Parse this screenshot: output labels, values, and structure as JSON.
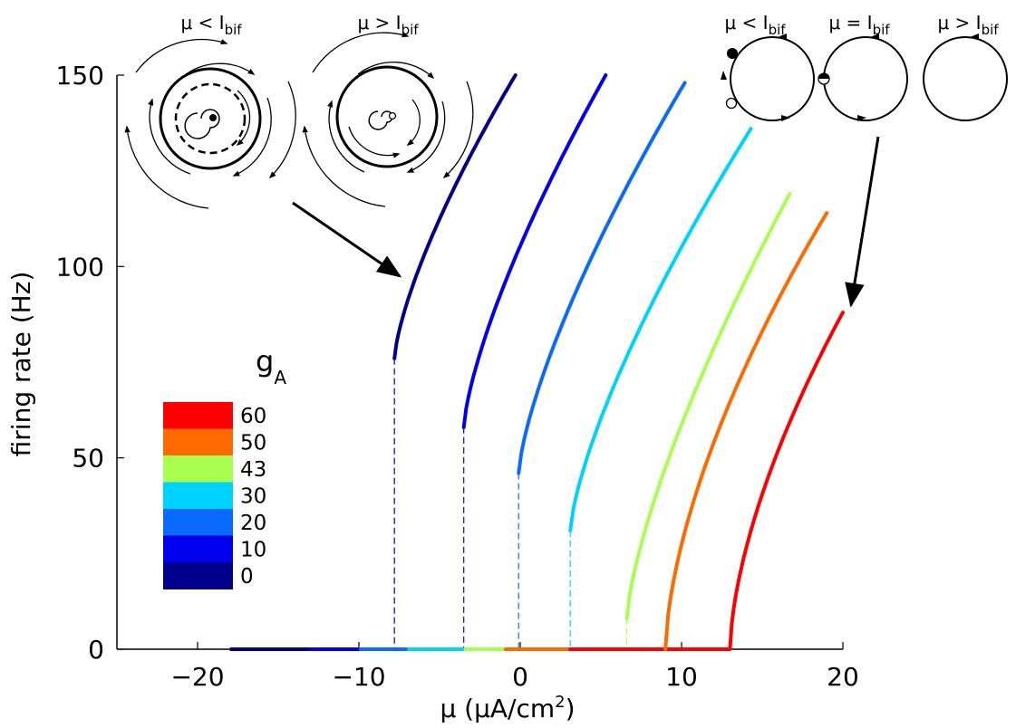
{
  "chart_data": {
    "type": "line",
    "title": "",
    "xlabel": "μ (μA/cm",
    "xlabel_sup": "2",
    "xlabel_end": ")",
    "ylabel": "firing rate (Hz)",
    "xlim": [
      -25,
      20
    ],
    "ylim": [
      0,
      150
    ],
    "xticks": [
      -20,
      -10,
      0,
      10,
      20
    ],
    "yticks": [
      0,
      50,
      100,
      150
    ],
    "xtick_labels": [
      "−20",
      "−10",
      "0",
      "10",
      "20"
    ],
    "ytick_labels": [
      "0",
      "50",
      "100",
      "150"
    ],
    "grid": false,
    "legend": {
      "title_main": "g",
      "title_sub": "A",
      "placement": "lower-left",
      "entries": [
        {
          "label": "60",
          "color": "#ff0000"
        },
        {
          "label": "50",
          "color": "#ff6a00"
        },
        {
          "label": "43",
          "color": "#a8ff50"
        },
        {
          "label": "30",
          "color": "#00d2ff"
        },
        {
          "label": "20",
          "color": "#0a6aff"
        },
        {
          "label": "10",
          "color": "#0000ee"
        },
        {
          "label": "0",
          "color": "#00008c"
        }
      ]
    },
    "series": [
      {
        "name": "0",
        "color": "#00008c",
        "x0": -7.8,
        "f0": 76,
        "x1": -0.3,
        "f1": 150,
        "zero_from": -18.0,
        "zero_to": -13.0
      },
      {
        "name": "10",
        "color": "#0000ee",
        "x0": -3.5,
        "f0": 58,
        "x1": 5.3,
        "f1": 150,
        "zero_from": -13.0,
        "zero_to": -10.0
      },
      {
        "name": "20",
        "color": "#0a6aff",
        "x0": -0.1,
        "f0": 46,
        "x1": 10.2,
        "f1": 148,
        "zero_from": -10.0,
        "zero_to": -7.0
      },
      {
        "name": "30",
        "color": "#00d2ff",
        "x0": 3.1,
        "f0": 31,
        "x1": 14.3,
        "f1": 136,
        "zero_from": -7.0,
        "zero_to": -3.5
      },
      {
        "name": "43",
        "color": "#a8ff50",
        "x0": 6.6,
        "f0": 8,
        "x1": 16.7,
        "f1": 119,
        "zero_from": -3.5,
        "zero_to": -1.0
      },
      {
        "name": "50",
        "color": "#ff6a00",
        "x0": 9.0,
        "f0": 0,
        "x1": 19.0,
        "f1": 114,
        "zero_from": -1.0,
        "zero_to": 3.0
      },
      {
        "name": "60",
        "color": "#ff0000",
        "x0": 13.0,
        "f0": 0,
        "x1": 20.0,
        "f1": 88,
        "zero_from": 3.0,
        "zero_to": 13.0
      }
    ],
    "dashed_drops": [
      {
        "x": -7.8,
        "y": 76,
        "color": "#00008c"
      },
      {
        "x": -3.5,
        "y": 58,
        "color": "#0000ee"
      },
      {
        "x": -0.1,
        "y": 46,
        "color": "#0a6aff"
      },
      {
        "x": 3.1,
        "y": 31,
        "color": "#00d2ff"
      },
      {
        "x": 6.6,
        "y": 8,
        "color": "#a8ff50"
      }
    ],
    "annotations": {
      "inset_left_1": {
        "mu": "μ < I",
        "sub": "bif"
      },
      "inset_left_2": {
        "mu": "μ > I",
        "sub": "bif"
      },
      "inset_right_1": {
        "mu": "μ < I",
        "sub": "bif"
      },
      "inset_right_2": {
        "mu": "μ = I",
        "sub": "bif"
      },
      "inset_right_3": {
        "mu": "μ > I",
        "sub": "bif"
      }
    }
  }
}
